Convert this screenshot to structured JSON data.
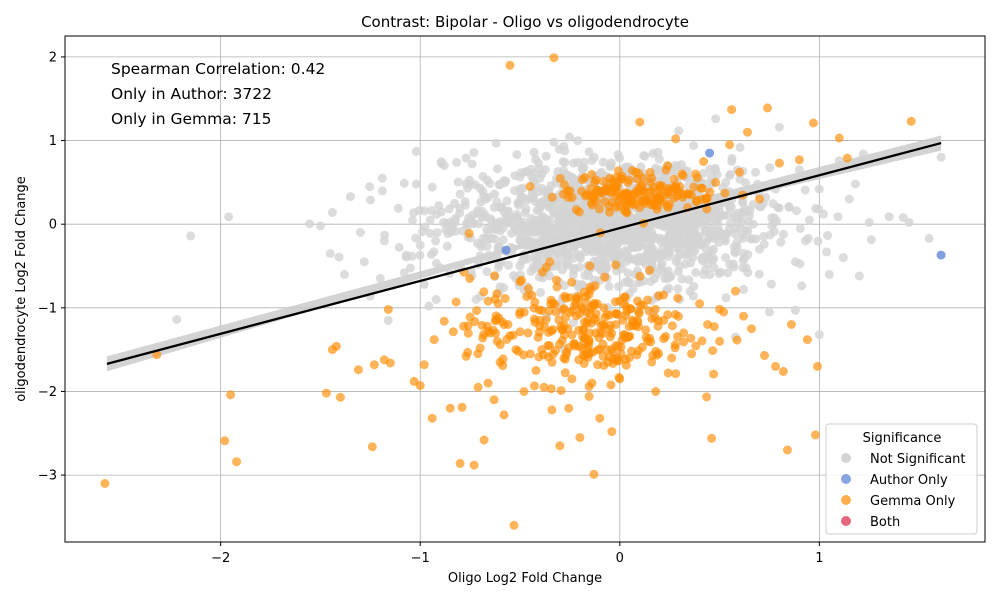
{
  "chart_data": {
    "type": "scatter",
    "title": "Contrast: Bipolar - Oligo vs oligodendrocyte",
    "xlabel": "Oligo Log2 Fold Change",
    "ylabel": "oligodendrocyte Log2 Fold Change",
    "xlim": [
      -2.78,
      1.83
    ],
    "ylim": [
      -3.8,
      2.25
    ],
    "x_ticks": [
      -2,
      -1,
      0,
      1
    ],
    "y_ticks": [
      -3,
      -2,
      -1,
      0,
      1,
      2
    ],
    "x_tick_labels": [
      "−2",
      "−1",
      "0",
      "1"
    ],
    "y_tick_labels": [
      "−3",
      "−2",
      "−1",
      "0",
      "1",
      "2"
    ],
    "grid": true,
    "annotations": [
      "Spearman Correlation: 0.42",
      "Only in Author: 3722",
      "Only in Gemma: 715"
    ],
    "legend": {
      "title": "Significance",
      "placement": "lower-right",
      "entries": [
        "Not Significant",
        "Author Only",
        "Gemma Only",
        "Both"
      ]
    },
    "colors": {
      "Not Significant": "#d3d3d3",
      "Author Only": "#6b8fd9",
      "Gemma Only": "#ff8c00",
      "Both": "#e04c66",
      "regression": "#000000",
      "band": "#c8c8c8"
    },
    "regression_line": {
      "x": [
        -2.57,
        1.61
      ],
      "y": [
        -1.67,
        0.97
      ]
    },
    "series": [
      {
        "name": "Not Significant",
        "points": [
          [
            -2.15,
            -0.14
          ],
          [
            -2.22,
            -1.14
          ],
          [
            -1.96,
            0.09
          ],
          [
            -1.5,
            -0.02
          ],
          [
            -1.44,
            0.14
          ],
          [
            -1.35,
            0.33
          ],
          [
            -1.3,
            -0.1
          ],
          [
            -1.25,
            -0.86
          ],
          [
            -1.2,
            -0.65
          ],
          [
            -1.19,
            0.55
          ],
          [
            -1.16,
            -1.15
          ],
          [
            -1.11,
            0.19
          ],
          [
            -1.08,
            0.49
          ],
          [
            -1.02,
            0.87
          ],
          [
            -1.0,
            -0.25
          ],
          [
            -0.95,
            0.05
          ],
          [
            -0.9,
            -0.52
          ],
          [
            -0.88,
            0.7
          ],
          [
            -0.85,
            -0.05
          ],
          [
            -0.8,
            0.36
          ],
          [
            -0.77,
            0.79
          ],
          [
            -0.74,
            0.72
          ],
          [
            -0.7,
            -0.38
          ],
          [
            -0.66,
            0.32
          ],
          [
            -0.62,
            0.97
          ],
          [
            -0.58,
            0.52
          ],
          [
            -0.55,
            0.06
          ],
          [
            -0.52,
            -0.65
          ],
          [
            -0.5,
            0.42
          ],
          [
            -0.47,
            0.18
          ],
          [
            -0.45,
            -0.2
          ],
          [
            -0.43,
            0.86
          ],
          [
            -0.4,
            0.55
          ],
          [
            -0.38,
            -0.12
          ],
          [
            -0.36,
            0.27
          ],
          [
            -0.33,
            0.98
          ],
          [
            -0.31,
            0.63
          ],
          [
            -0.3,
            -0.33
          ],
          [
            -0.27,
            0.12
          ],
          [
            -0.25,
            0.41
          ],
          [
            -0.23,
            -0.55
          ],
          [
            -0.21,
            0.2
          ],
          [
            -0.18,
            0.74
          ],
          [
            -0.17,
            -0.08
          ],
          [
            -0.15,
            0.35
          ],
          [
            -0.12,
            -0.28
          ],
          [
            -0.1,
            0.6
          ],
          [
            -0.08,
            0.15
          ],
          [
            -0.05,
            -0.4
          ],
          [
            -0.03,
            0.25
          ],
          [
            0.0,
            0.05
          ],
          [
            0.02,
            -0.15
          ],
          [
            0.05,
            0.47
          ],
          [
            0.08,
            -0.22
          ],
          [
            0.1,
            0.12
          ],
          [
            0.12,
            0.82
          ],
          [
            0.15,
            -0.35
          ],
          [
            0.18,
            0.3
          ],
          [
            0.2,
            0.03
          ],
          [
            0.23,
            0.66
          ],
          [
            0.25,
            -0.12
          ],
          [
            0.28,
            0.38
          ],
          [
            0.3,
            -0.5
          ],
          [
            0.33,
            0.16
          ],
          [
            0.35,
            -0.25
          ],
          [
            0.37,
            0.94
          ],
          [
            0.4,
            0.08
          ],
          [
            0.42,
            -0.6
          ],
          [
            0.44,
            0.42
          ],
          [
            0.46,
            -0.15
          ],
          [
            0.48,
            1.26
          ],
          [
            0.5,
            0.22
          ],
          [
            0.53,
            -0.4
          ],
          [
            0.55,
            0.58
          ],
          [
            0.58,
            -0.05
          ],
          [
            0.6,
            0.35
          ],
          [
            0.62,
            -0.78
          ],
          [
            0.65,
            0.1
          ],
          [
            0.68,
            0.62
          ],
          [
            0.7,
            -0.3
          ],
          [
            0.72,
            0.25
          ],
          [
            0.75,
            -1.05
          ],
          [
            0.78,
            0.42
          ],
          [
            0.8,
            1.16
          ],
          [
            0.82,
            -0.12
          ],
          [
            0.85,
            0.2
          ],
          [
            0.88,
            -0.45
          ],
          [
            0.9,
            0.65
          ],
          [
            0.93,
            -0.2
          ],
          [
            0.95,
            0.05
          ],
          [
            1.0,
            -1.32
          ],
          [
            1.02,
            0.12
          ],
          [
            1.05,
            -0.6
          ],
          [
            1.1,
            0.76
          ],
          [
            1.12,
            -0.4
          ],
          [
            1.15,
            0.3
          ],
          [
            1.18,
            0.48
          ],
          [
            1.2,
            -0.62
          ],
          [
            1.22,
            0.84
          ],
          [
            1.25,
            0.02
          ],
          [
            1.35,
            0.09
          ],
          [
            1.42,
            0.08
          ],
          [
            1.45,
            0.02
          ],
          [
            1.55,
            -0.17
          ],
          [
            1.61,
            0.8
          ],
          [
            -0.92,
            -0.9
          ],
          [
            -0.6,
            -0.75
          ],
          [
            -0.35,
            -0.62
          ],
          [
            0.05,
            -0.7
          ],
          [
            0.3,
            -0.9
          ],
          [
            0.58,
            -1.35
          ],
          [
            0.88,
            -1.03
          ],
          [
            -1.45,
            -0.35
          ],
          [
            -1.38,
            -0.6
          ],
          [
            -1.28,
            -0.45
          ],
          [
            -1.18,
            -0.2
          ],
          [
            -1.08,
            -0.58
          ],
          [
            -0.98,
            -0.72
          ],
          [
            -0.72,
            -0.9
          ]
        ]
      },
      {
        "name": "Author Only",
        "points": [
          [
            1.61,
            -0.37
          ],
          [
            -0.57,
            -0.31
          ],
          [
            0.45,
            0.85
          ]
        ]
      },
      {
        "name": "Gemma Only",
        "points": [
          [
            -2.58,
            -3.1
          ],
          [
            -2.32,
            -1.56
          ],
          [
            -1.98,
            -2.59
          ],
          [
            -1.95,
            -2.04
          ],
          [
            -1.92,
            -2.84
          ],
          [
            -1.47,
            -2.02
          ],
          [
            -1.44,
            -1.5
          ],
          [
            -1.42,
            -1.46
          ],
          [
            -1.4,
            -2.07
          ],
          [
            -1.31,
            -1.74
          ],
          [
            -1.24,
            -2.66
          ],
          [
            -1.23,
            -1.68
          ],
          [
            -1.18,
            -1.62
          ],
          [
            -1.16,
            -1.02
          ],
          [
            -1.15,
            -1.66
          ],
          [
            -1.03,
            -1.88
          ],
          [
            -1.0,
            -1.93
          ],
          [
            -0.98,
            -1.68
          ],
          [
            -0.94,
            -2.32
          ],
          [
            -0.93,
            -1.38
          ],
          [
            -0.88,
            -1.16
          ],
          [
            -0.85,
            -2.2
          ],
          [
            -0.82,
            -0.93
          ],
          [
            -0.8,
            -2.86
          ],
          [
            -0.79,
            -2.19
          ],
          [
            -0.77,
            -1.58
          ],
          [
            -0.75,
            -1.11
          ],
          [
            -0.73,
            -2.88
          ],
          [
            -0.71,
            -1.95
          ],
          [
            -0.7,
            -1.48
          ],
          [
            -0.68,
            -2.58
          ],
          [
            -0.66,
            -1.9
          ],
          [
            -0.65,
            -1.3
          ],
          [
            -0.63,
            -2.1
          ],
          [
            -0.61,
            -0.95
          ],
          [
            -0.6,
            -1.65
          ],
          [
            -0.58,
            -2.28
          ],
          [
            -0.56,
            -1.2
          ],
          [
            -0.55,
            1.9
          ],
          [
            -0.53,
            -3.6
          ],
          [
            -0.52,
            -1.5
          ],
          [
            -0.5,
            -1.05
          ],
          [
            -0.48,
            -2.0
          ],
          [
            -0.46,
            -1.3
          ],
          [
            -0.44,
            -0.85
          ],
          [
            -0.42,
            -1.75
          ],
          [
            -0.4,
            -1.15
          ],
          [
            -0.38,
            -1.95
          ],
          [
            -0.36,
            -1.45
          ],
          [
            -0.34,
            -2.22
          ],
          [
            -0.33,
            1.99
          ],
          [
            -0.32,
            -1.05
          ],
          [
            -0.3,
            -2.65
          ],
          [
            -0.28,
            -1.6
          ],
          [
            -0.26,
            -1.25
          ],
          [
            -0.24,
            -1.85
          ],
          [
            -0.22,
            -0.95
          ],
          [
            -0.2,
            -2.55
          ],
          [
            -0.18,
            -1.4
          ],
          [
            -0.16,
            -1.15
          ],
          [
            -0.14,
            -1.9
          ],
          [
            -0.13,
            -2.99
          ],
          [
            -0.12,
            -1.3
          ],
          [
            -0.1,
            -2.32
          ],
          [
            -0.08,
            -1.0
          ],
          [
            -0.06,
            -1.65
          ],
          [
            -0.04,
            -2.48
          ],
          [
            -0.02,
            -1.2
          ],
          [
            0.0,
            -1.85
          ],
          [
            0.02,
            0.35
          ],
          [
            0.04,
            0.5
          ],
          [
            0.06,
            0.28
          ],
          [
            0.08,
            0.62
          ],
          [
            0.1,
            1.22
          ],
          [
            0.12,
            0.4
          ],
          [
            0.14,
            -1.4
          ],
          [
            0.16,
            0.55
          ],
          [
            0.18,
            -2.0
          ],
          [
            0.2,
            0.3
          ],
          [
            0.22,
            -1.15
          ],
          [
            0.24,
            0.7
          ],
          [
            0.26,
            -1.6
          ],
          [
            0.28,
            1.02
          ],
          [
            0.3,
            0.45
          ],
          [
            0.32,
            -1.3
          ],
          [
            0.34,
            0.2
          ],
          [
            0.36,
            -1.55
          ],
          [
            0.38,
            0.6
          ],
          [
            0.4,
            -0.95
          ],
          [
            0.42,
            0.75
          ],
          [
            0.44,
            -1.2
          ],
          [
            0.46,
            -2.56
          ],
          [
            0.48,
            0.5
          ],
          [
            0.5,
            -1.4
          ],
          [
            0.52,
            -1.05
          ],
          [
            0.55,
            0.95
          ],
          [
            0.56,
            1.37
          ],
          [
            0.58,
            -0.8
          ],
          [
            0.6,
            0.62
          ],
          [
            0.62,
            -1.1
          ],
          [
            0.64,
            1.1
          ],
          [
            0.66,
            -1.25
          ],
          [
            0.7,
            0.3
          ],
          [
            0.74,
            1.39
          ],
          [
            0.78,
            -1.7
          ],
          [
            0.8,
            0.73
          ],
          [
            0.82,
            -1.76
          ],
          [
            0.84,
            -2.7
          ],
          [
            0.86,
            -1.2
          ],
          [
            0.9,
            0.77
          ],
          [
            0.94,
            -1.38
          ],
          [
            0.97,
            1.21
          ],
          [
            0.98,
            -2.52
          ],
          [
            0.99,
            -1.7
          ],
          [
            1.1,
            1.03
          ],
          [
            1.14,
            0.79
          ],
          [
            1.46,
            1.23
          ],
          [
            -0.45,
            0.45
          ],
          [
            -0.25,
            0.4
          ],
          [
            -0.05,
            0.55
          ],
          [
            0.1,
            0.2
          ],
          [
            -0.15,
            -0.5
          ],
          [
            0.15,
            -0.55
          ],
          [
            -0.35,
            -0.45
          ]
        ]
      },
      {
        "name": "Both",
        "points": []
      }
    ],
    "clusters": [
      {
        "series": "Not Significant",
        "center": [
          -0.05,
          0.0
        ],
        "spread": [
          0.4,
          0.35
        ],
        "count": 1400
      },
      {
        "series": "Gemma Only",
        "center": [
          -0.2,
          -1.25
        ],
        "spread": [
          0.28,
          0.32
        ],
        "count": 280
      },
      {
        "series": "Gemma Only",
        "center": [
          0.1,
          0.38
        ],
        "spread": [
          0.2,
          0.12
        ],
        "count": 160
      }
    ]
  }
}
